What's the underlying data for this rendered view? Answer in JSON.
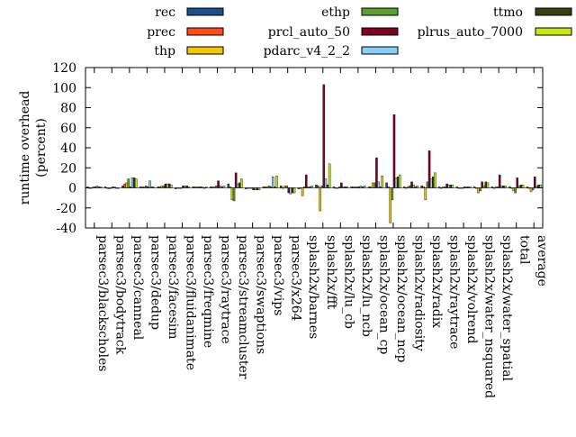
{
  "chart_data": {
    "type": "bar",
    "ylabel": "runtime overhead\n(percent)",
    "ylim": [
      -40,
      120
    ],
    "yticks": [
      -40,
      -20,
      0,
      20,
      40,
      60,
      80,
      100,
      120
    ],
    "grid": false,
    "legend_position": "top",
    "categories": [
      "parsec3/blackscholes",
      "parsec3/bodytrack",
      "parsec3/canneal",
      "parsec3/dedup",
      "parsec3/facesim",
      "parsec3/fluidanimate",
      "parsec3/freqmine",
      "parsec3/raytrace",
      "parsec3/streamcluster",
      "parsec3/swaptions",
      "parsec3/vips",
      "parsec3/x264",
      "splash2x/barnes",
      "splash2x/fft",
      "splash2x/lu_cb",
      "splash2x/lu_ncb",
      "splash2x/ocean_cp",
      "splash2x/ocean_ncp",
      "splash2x/radiosity",
      "splash2x/radix",
      "splash2x/raytrace",
      "splash2x/volrend",
      "splash2x/water_nsquared",
      "splash2x/water_spatial",
      "total",
      "average"
    ],
    "series": [
      {
        "name": "rec",
        "color": "#1f4e8c",
        "values": [
          1,
          1,
          2,
          1,
          1,
          -1,
          1,
          1,
          4,
          -1,
          1,
          2,
          -1,
          3,
          1,
          1,
          1,
          5,
          1,
          2,
          1,
          1,
          1,
          1,
          1,
          1
        ]
      },
      {
        "name": "prec",
        "color": "#ff4d1a",
        "values": [
          0,
          0,
          4,
          1,
          1,
          0,
          1,
          1,
          1,
          0,
          1,
          0,
          0,
          2,
          0,
          1,
          1,
          1,
          0,
          1,
          0,
          0,
          0,
          0,
          0,
          0
        ]
      },
      {
        "name": "thp",
        "color": "#f5c800",
        "values": [
          0,
          -1,
          5,
          1,
          2,
          0,
          1,
          1,
          -12,
          0,
          1,
          2,
          -8,
          -23,
          0,
          1,
          5,
          -35,
          1,
          -12,
          1,
          0,
          -5,
          1,
          -3,
          -4
        ]
      },
      {
        "name": "ethp",
        "color": "#5aa02c",
        "values": [
          1,
          0,
          9,
          2,
          2,
          0,
          1,
          2,
          -13,
          0,
          2,
          2,
          1,
          2,
          1,
          1,
          5,
          -12,
          2,
          6,
          1,
          0,
          -3,
          1,
          -5,
          -2
        ]
      },
      {
        "name": "prcl_auto_50",
        "color": "#800020",
        "values": [
          1,
          1,
          1,
          1,
          4,
          2,
          1,
          7,
          15,
          -2,
          1,
          -5,
          13,
          103,
          5,
          1,
          30,
          73,
          6,
          37,
          4,
          1,
          6,
          13,
          10,
          11
        ]
      },
      {
        "name": "pdarc_v4_2_2",
        "color": "#87cefa",
        "values": [
          2,
          1,
          10,
          7,
          4,
          2,
          1,
          2,
          4,
          -2,
          11,
          -6,
          1,
          9,
          1,
          2,
          6,
          10,
          3,
          9,
          3,
          1,
          2,
          2,
          2,
          2
        ]
      },
      {
        "name": "ttmo",
        "color": "#36400f",
        "values": [
          1,
          0,
          10,
          1,
          4,
          2,
          0,
          1,
          5,
          -2,
          1,
          -5,
          1,
          3,
          1,
          1,
          1,
          11,
          1,
          11,
          3,
          1,
          6,
          2,
          3,
          3
        ]
      },
      {
        "name": "plrus_auto_7000",
        "color": "#c8e614",
        "values": [
          1,
          0,
          9,
          1,
          3,
          1,
          1,
          2,
          9,
          -2,
          12,
          -5,
          2,
          24,
          1,
          2,
          12,
          13,
          2,
          15,
          3,
          1,
          5,
          2,
          3,
          3
        ]
      }
    ]
  }
}
